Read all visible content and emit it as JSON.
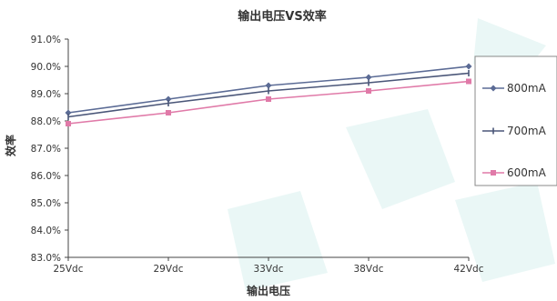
{
  "chart_data": {
    "type": "line",
    "title": "输出电压VS效率",
    "xlabel": "输出电压",
    "ylabel": "效率",
    "categories": [
      "25Vdc",
      "29Vdc",
      "33Vdc",
      "38Vdc",
      "42Vdc"
    ],
    "ylim": [
      83.0,
      91.0
    ],
    "yticks": [
      "83.0%",
      "84.0%",
      "85.0%",
      "86.0%",
      "87.0%",
      "88.0%",
      "89.0%",
      "90.0%",
      "91.0%"
    ],
    "grid": false,
    "legend_position": "right",
    "series": [
      {
        "name": "800mA",
        "color": "#5b6b95",
        "marker": "diamond",
        "values": [
          88.3,
          88.8,
          89.3,
          89.6,
          90.0
        ]
      },
      {
        "name": "700mA",
        "color": "#4a5678",
        "marker": "dash",
        "values": [
          88.15,
          88.65,
          89.1,
          89.4,
          89.75
        ]
      },
      {
        "name": "600mA",
        "color": "#e07aa8",
        "marker": "square",
        "values": [
          87.9,
          88.3,
          88.8,
          89.1,
          89.45
        ]
      }
    ]
  }
}
